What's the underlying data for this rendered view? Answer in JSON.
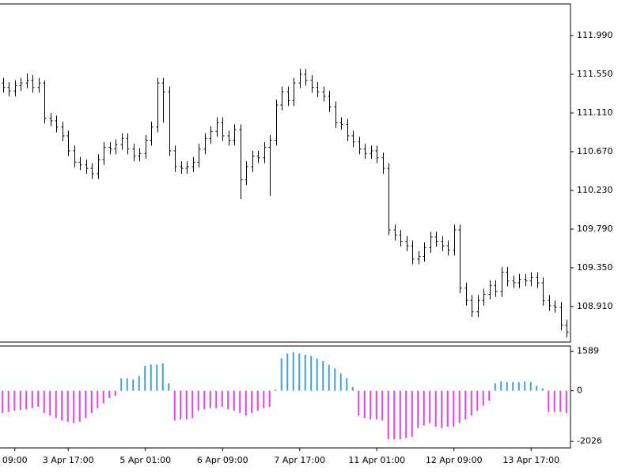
{
  "chart_data": [
    {
      "type": "ohlc",
      "color": "#000000",
      "open": [
        111.45,
        111.4,
        111.36,
        111.42,
        111.45,
        111.48,
        111.4,
        111.45,
        111.05,
        111.02,
        110.95,
        110.85,
        110.68,
        110.55,
        110.52,
        110.48,
        110.42,
        110.58,
        110.72,
        110.7,
        110.75,
        110.82,
        110.7,
        110.62,
        110.65,
        110.8,
        110.95,
        111.45,
        111.35,
        110.68,
        110.5,
        110.48,
        110.5,
        110.55,
        110.7,
        110.82,
        110.9,
        111.0,
        110.85,
        110.8,
        110.92,
        110.35,
        110.5,
        110.62,
        110.6,
        110.72,
        110.8,
        111.2,
        111.35,
        111.25,
        111.45,
        111.55,
        111.48,
        111.4,
        111.35,
        111.3,
        111.18,
        111.0,
        110.98,
        110.85,
        110.78,
        110.7,
        110.65,
        110.68,
        110.6,
        110.48,
        109.78,
        109.72,
        109.65,
        109.6,
        109.45,
        109.48,
        109.58,
        109.7,
        109.65,
        109.6,
        109.55,
        109.78,
        109.12,
        108.98,
        108.85,
        108.98,
        109.05,
        109.15,
        109.08,
        109.3,
        109.2,
        109.18,
        109.22,
        109.2,
        109.24,
        109.18,
        108.98,
        108.92,
        108.9,
        108.7
      ],
      "high": [
        111.51,
        111.46,
        111.48,
        111.51,
        111.56,
        111.54,
        111.51,
        111.48,
        111.11,
        111.08,
        111.01,
        110.91,
        110.74,
        110.61,
        110.58,
        110.54,
        110.64,
        110.78,
        110.78,
        110.81,
        110.88,
        110.88,
        110.76,
        110.71,
        110.86,
        111.01,
        111.51,
        111.51,
        111.41,
        110.74,
        110.56,
        110.56,
        110.61,
        110.76,
        110.88,
        110.96,
        111.06,
        111.06,
        110.91,
        110.98,
        110.98,
        110.56,
        110.68,
        110.68,
        110.78,
        110.86,
        111.26,
        111.41,
        111.41,
        111.51,
        111.61,
        111.61,
        111.54,
        111.46,
        111.41,
        111.36,
        111.24,
        111.06,
        111.04,
        110.91,
        110.84,
        110.76,
        110.74,
        110.74,
        110.66,
        110.54,
        109.84,
        109.78,
        109.71,
        109.66,
        109.54,
        109.64,
        109.76,
        109.76,
        109.71,
        109.66,
        109.84,
        109.84,
        109.18,
        109.04,
        109.04,
        109.11,
        109.21,
        109.21,
        109.36,
        109.36,
        109.26,
        109.28,
        109.28,
        109.3,
        109.3,
        109.24,
        109.04,
        108.98,
        108.96,
        108.76
      ],
      "low": [
        111.34,
        111.3,
        111.3,
        111.36,
        111.39,
        111.34,
        111.34,
        110.99,
        110.96,
        110.89,
        110.79,
        110.62,
        110.49,
        110.46,
        110.42,
        110.36,
        110.36,
        110.52,
        110.64,
        110.64,
        110.69,
        110.64,
        110.56,
        110.56,
        110.59,
        110.74,
        110.89,
        111.0,
        110.62,
        110.44,
        110.42,
        110.42,
        110.44,
        110.49,
        110.64,
        110.76,
        110.84,
        110.79,
        110.74,
        110.74,
        110.13,
        110.29,
        110.44,
        110.54,
        110.54,
        110.17,
        110.74,
        111.14,
        111.19,
        111.19,
        111.39,
        111.42,
        111.34,
        111.29,
        111.24,
        111.12,
        110.94,
        110.92,
        110.79,
        110.72,
        110.64,
        110.59,
        110.59,
        110.54,
        110.42,
        109.72,
        109.66,
        109.59,
        109.54,
        109.39,
        109.39,
        109.42,
        109.52,
        109.59,
        109.54,
        109.49,
        109.49,
        109.06,
        108.92,
        108.79,
        108.79,
        108.92,
        108.99,
        109.02,
        109.02,
        109.14,
        109.12,
        109.12,
        109.14,
        109.14,
        109.12,
        108.92,
        108.86,
        108.84,
        108.64,
        108.56
      ],
      "close": [
        111.4,
        111.36,
        111.42,
        111.45,
        111.48,
        111.4,
        111.45,
        111.05,
        111.02,
        110.95,
        110.85,
        110.68,
        110.55,
        110.52,
        110.48,
        110.42,
        110.58,
        110.72,
        110.7,
        110.75,
        110.82,
        110.7,
        110.62,
        110.65,
        110.8,
        110.95,
        111.45,
        111.35,
        110.68,
        110.5,
        110.48,
        110.5,
        110.55,
        110.7,
        110.82,
        110.9,
        111.0,
        110.85,
        110.8,
        110.92,
        110.35,
        110.5,
        110.62,
        110.6,
        110.72,
        110.8,
        111.2,
        111.35,
        111.25,
        111.45,
        111.55,
        111.48,
        111.4,
        111.35,
        111.3,
        111.18,
        111.0,
        110.98,
        110.85,
        110.78,
        110.7,
        110.65,
        110.68,
        110.6,
        110.48,
        109.78,
        109.72,
        109.65,
        109.6,
        109.45,
        109.48,
        109.58,
        109.7,
        109.65,
        109.6,
        109.55,
        109.78,
        109.12,
        108.98,
        108.85,
        108.98,
        109.05,
        109.15,
        109.08,
        109.3,
        109.2,
        109.18,
        109.22,
        109.2,
        109.24,
        109.18,
        108.98,
        108.92,
        108.9,
        108.7,
        108.62
      ],
      "ylim": [
        108.506,
        112.349
      ],
      "yticks": [
        {
          "value": 108.91,
          "label": "108.910"
        },
        {
          "value": 109.35,
          "label": "109.350"
        },
        {
          "value": 109.79,
          "label": "109.790"
        },
        {
          "value": 110.23,
          "label": "110.230"
        },
        {
          "value": 110.67,
          "label": "110.670"
        },
        {
          "value": 111.11,
          "label": "111.110"
        },
        {
          "value": 111.55,
          "label": "111.550"
        },
        {
          "value": 111.99,
          "label": "111.990"
        }
      ]
    },
    {
      "type": "bar",
      "up_color": "#3d9fd8",
      "down_color": "#e83ee8",
      "categories": [
        null,
        null,
        "09:00",
        null,
        null,
        null,
        null,
        null,
        null,
        null,
        null,
        "3 Apr 17:00",
        null,
        null,
        null,
        null,
        null,
        null,
        null,
        null,
        null,
        null,
        null,
        null,
        "5 Apr 01:00",
        null,
        null,
        null,
        null,
        null,
        null,
        null,
        null,
        null,
        null,
        null,
        null,
        "6 Apr 09:00",
        null,
        null,
        null,
        null,
        null,
        null,
        null,
        null,
        null,
        null,
        null,
        null,
        "7 Apr 17:00",
        null,
        null,
        null,
        null,
        null,
        null,
        null,
        null,
        null,
        null,
        null,
        null,
        "11 Apr 01:00",
        null,
        null,
        null,
        null,
        null,
        null,
        null,
        null,
        null,
        null,
        null,
        null,
        "12 Apr 09:00",
        null,
        null,
        null,
        null,
        null,
        null,
        null,
        null,
        null,
        null,
        null,
        null,
        "13 Apr 17:00",
        null,
        null,
        null,
        null,
        null,
        null
      ],
      "values": [
        -900,
        -850,
        -800,
        -780,
        -750,
        -700,
        -650,
        -900,
        -1000,
        -1100,
        -1200,
        -1250,
        -1300,
        -1250,
        -1100,
        -900,
        -700,
        -500,
        -300,
        -200,
        500,
        500,
        450,
        600,
        1000,
        1050,
        1050,
        1100,
        300,
        -1200,
        -1150,
        -1150,
        -1100,
        -800,
        -750,
        -700,
        -700,
        -650,
        -750,
        -800,
        -900,
        -1000,
        -900,
        -800,
        -700,
        -650,
        50,
        1300,
        1500,
        1550,
        1500,
        1450,
        1400,
        1300,
        1200,
        1050,
        900,
        700,
        500,
        150,
        -1000,
        -1100,
        -1150,
        -1150,
        -1200,
        -1950,
        -1950,
        -1950,
        -1900,
        -1850,
        -1500,
        -1400,
        -1300,
        -1450,
        -1500,
        -1450,
        -1450,
        -1300,
        -1150,
        -1000,
        -800,
        -600,
        -400,
        300,
        380,
        350,
        350,
        350,
        380,
        350,
        200,
        100,
        -850,
        -850,
        -850,
        -900
      ],
      "ylim": [
        -2300,
        1800
      ],
      "yticks": [
        -2026,
        0,
        1589
      ]
    }
  ]
}
